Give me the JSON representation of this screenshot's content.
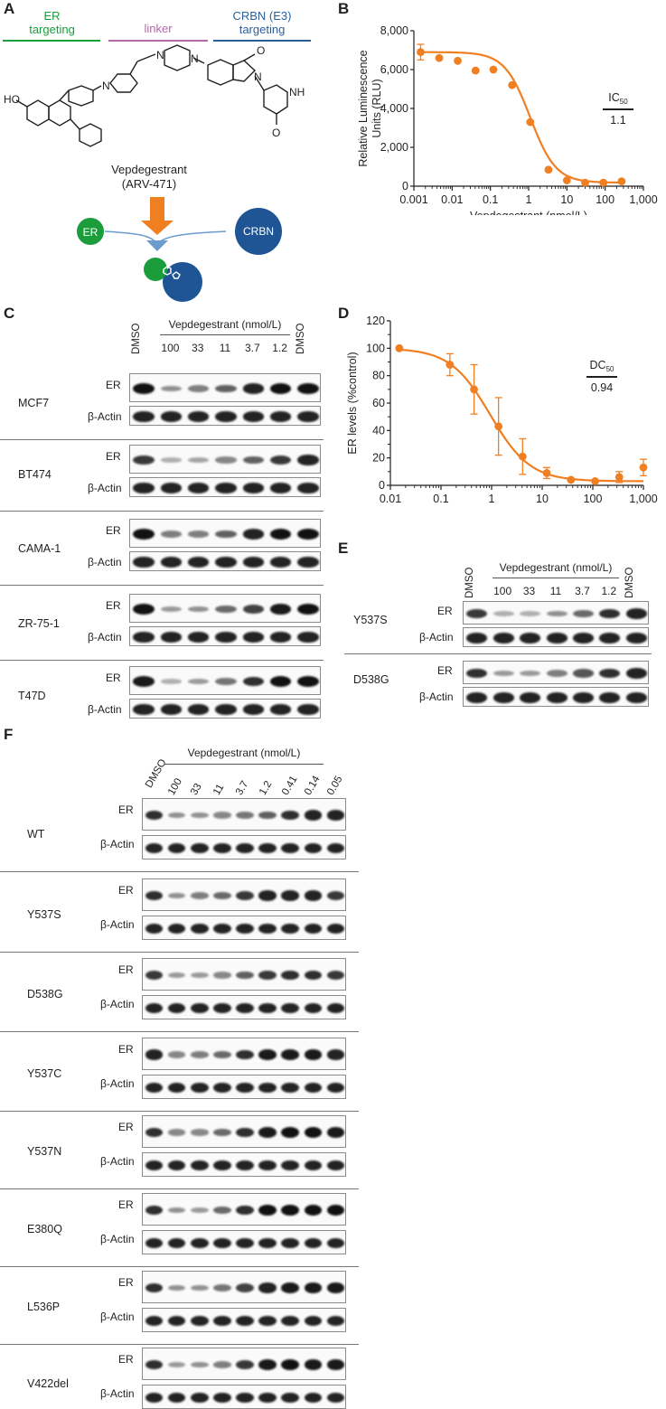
{
  "panel_labels": {
    "a": "A",
    "b": "B",
    "c": "C",
    "d": "D",
    "e": "E",
    "f": "F"
  },
  "panelA": {
    "er_targeting": "ER\ntargeting",
    "linker": "linker",
    "crbn_targeting": "CRBN (E3)\ntargeting",
    "compound_name": "Vepdegestrant",
    "compound_code": "(ARV-471)",
    "er_label": "ER",
    "crbn_label": "CRBN",
    "atoms": {
      "ho": "HO",
      "n1": "N",
      "n2": "N",
      "n3": "N",
      "n4": "N",
      "o1": "O",
      "o2": "O",
      "o3": "O",
      "nh": "NH"
    },
    "colors": {
      "green": "#1a9d3a",
      "pink": "#b56aa6",
      "blue": "#2a5f9e",
      "orange": "#f07f22",
      "arrow": "#6c9ccc"
    }
  },
  "chart_data": [
    {
      "type": "scatter",
      "panel": "B",
      "xlabel": "Vepdegestrant (nmol/L)",
      "ylabel": "Relative Luminescence Units (RLU)",
      "xscale": "log",
      "xlim": [
        0.001,
        1000
      ],
      "ylim": [
        0,
        8000
      ],
      "xticks": [
        "0.001",
        "0.01",
        "0.1",
        "1",
        "10",
        "100",
        "1,000"
      ],
      "yticks": [
        "0",
        "2,000",
        "4,000",
        "6,000",
        "8,000"
      ],
      "x": [
        0.0015,
        0.0046,
        0.014,
        0.041,
        0.12,
        0.37,
        1.1,
        3.3,
        10,
        30,
        90,
        270
      ],
      "y": [
        6900,
        6600,
        6450,
        5950,
        6000,
        5200,
        3300,
        850,
        300,
        180,
        180,
        250
      ],
      "errors": [
        400,
        0,
        0,
        0,
        0,
        0,
        0,
        0,
        0,
        0,
        0,
        0
      ],
      "annotation_label": "IC",
      "annotation_sub": "50",
      "annotation_value": "1.1",
      "color": "#f07f22"
    },
    {
      "type": "scatter",
      "panel": "D",
      "xlabel": "Vepdegestrant (nmol/L)",
      "ylabel": "ER levels (%control)",
      "xscale": "log",
      "xlim": [
        0.01,
        1000
      ],
      "ylim": [
        0,
        120
      ],
      "xticks": [
        "0.01",
        "0.1",
        "1",
        "10",
        "100",
        "1,000"
      ],
      "yticks": [
        "0",
        "20",
        "40",
        "60",
        "80",
        "100",
        "120"
      ],
      "x": [
        0.015,
        0.15,
        0.45,
        1.37,
        4.1,
        12.3,
        37,
        111,
        333,
        1000
      ],
      "y": [
        100,
        88,
        70,
        43,
        21,
        9,
        4,
        3,
        6,
        13
      ],
      "errors": [
        0,
        8,
        18,
        21,
        13,
        4,
        0,
        0,
        4,
        6
      ],
      "annotation_label": "DC",
      "annotation_sub": "50",
      "annotation_value": "0.94",
      "color": "#f07f22"
    }
  ],
  "panelC": {
    "header_left": "DMSO",
    "header_right": "DMSO",
    "treatment": "Vepdegestrant (nmol/L)",
    "concs": [
      "100",
      "33",
      "11",
      "3.7",
      "1.2"
    ],
    "er": "ER",
    "actin": "β-Actin",
    "lines": [
      {
        "name": "MCF7",
        "er": [
          1.0,
          0.35,
          0.45,
          0.6,
          0.9,
          1.0,
          1.0
        ]
      },
      {
        "name": "BT474",
        "er": [
          0.8,
          0.2,
          0.25,
          0.4,
          0.6,
          0.8,
          0.9
        ]
      },
      {
        "name": "CAMA-1",
        "er": [
          1.0,
          0.45,
          0.45,
          0.6,
          0.9,
          1.0,
          1.0
        ]
      },
      {
        "name": "ZR-75-1",
        "er": [
          1.0,
          0.3,
          0.35,
          0.55,
          0.75,
          0.95,
          1.0
        ]
      },
      {
        "name": "T47D",
        "er": [
          0.95,
          0.2,
          0.3,
          0.5,
          0.85,
          1.0,
          1.0
        ]
      }
    ]
  },
  "panelE": {
    "header_left": "DMSO",
    "header_right": "DMSO",
    "treatment": "Vepdegestrant (nmol/L)",
    "concs": [
      "100",
      "33",
      "11",
      "3.7",
      "1.2"
    ],
    "er": "ER",
    "actin": "β-Actin",
    "lines": [
      {
        "name": "Y537S",
        "er": [
          0.8,
          0.2,
          0.2,
          0.35,
          0.55,
          0.85,
          0.9
        ]
      },
      {
        "name": "D538G",
        "er": [
          0.85,
          0.3,
          0.3,
          0.45,
          0.65,
          0.85,
          0.9
        ]
      }
    ]
  },
  "panelF": {
    "header_left": "DMSO",
    "treatment": "Vepdegestrant (nmol/L)",
    "concs": [
      "100",
      "33",
      "11",
      "3.7",
      "1.2",
      "0.41",
      "0.14",
      "0.05"
    ],
    "er": "ER",
    "actin": "β-Actin",
    "lines": [
      {
        "name": "WT",
        "er": [
          0.85,
          0.35,
          0.35,
          0.4,
          0.5,
          0.6,
          0.85,
          0.9,
          0.9
        ]
      },
      {
        "name": "Y537S",
        "er": [
          0.85,
          0.35,
          0.45,
          0.55,
          0.8,
          0.9,
          0.9,
          0.9,
          0.8
        ]
      },
      {
        "name": "D538G",
        "er": [
          0.8,
          0.3,
          0.3,
          0.4,
          0.6,
          0.8,
          0.85,
          0.85,
          0.8
        ]
      },
      {
        "name": "Y537C",
        "er": [
          0.9,
          0.4,
          0.45,
          0.55,
          0.85,
          0.95,
          0.95,
          0.95,
          0.9
        ]
      },
      {
        "name": "Y537N",
        "er": [
          0.85,
          0.4,
          0.4,
          0.55,
          0.85,
          0.95,
          1.0,
          1.0,
          0.95
        ]
      },
      {
        "name": "E380Q",
        "er": [
          0.85,
          0.35,
          0.3,
          0.55,
          0.85,
          1.0,
          1.0,
          1.0,
          1.0
        ]
      },
      {
        "name": "L536P",
        "er": [
          0.85,
          0.35,
          0.35,
          0.5,
          0.75,
          0.9,
          0.95,
          0.95,
          0.95
        ]
      },
      {
        "name": "V422del",
        "er": [
          0.85,
          0.3,
          0.35,
          0.45,
          0.8,
          0.95,
          1.0,
          0.95,
          0.95
        ]
      }
    ]
  }
}
